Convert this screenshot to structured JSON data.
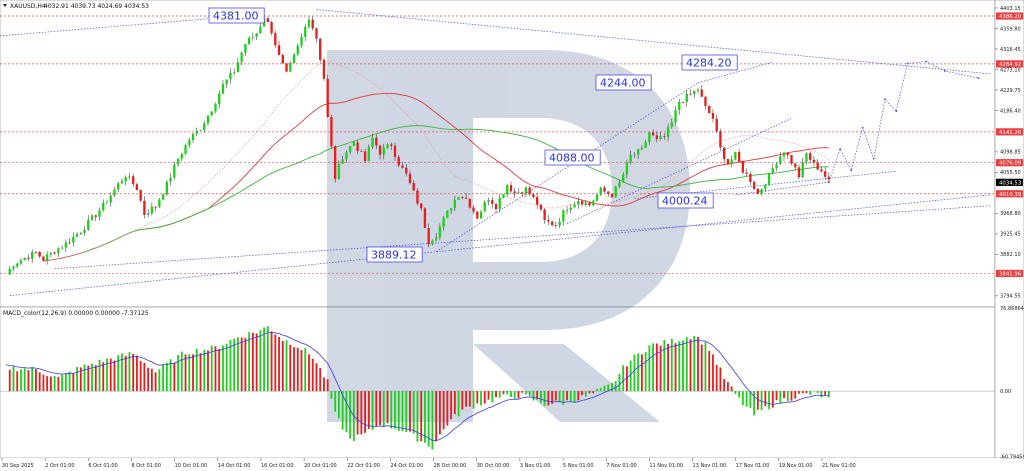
{
  "header": {
    "title": "XAUUSD,H4",
    "ohlc": "4032.91 4039.73 4024.69 4034.53"
  },
  "macd_label": "MACD_color(12,26,9) 0.00000 0.00000 -7.37125",
  "colors": {
    "bull": "#1ecf1e",
    "bear": "#e81c1c",
    "ma_slow": "#e23a3a",
    "ma_fast": "#3cb43c",
    "ma_mid": "#d9a0a0",
    "forecast": "#4b4be8",
    "level": "#e05050",
    "label_text": "#2a35d8",
    "macd_signal": "#3a3ae0",
    "current_price_bg": "#000000"
  },
  "price_axis": [
    "4403.15",
    "4359.80",
    "4316.45",
    "4273.10",
    "4229.75",
    "4186.40",
    "4098.85",
    "4055.50",
    "3968.80",
    "3925.45",
    "3882.10",
    "3794.55"
  ],
  "macd_axis": [
    "76.86864",
    "0.00",
    "-60.79459"
  ],
  "level_tags": [
    {
      "text": "4386.20",
      "color": "#e84040",
      "value": 4386.2
    },
    {
      "text": "4284.92",
      "color": "#e84040",
      "value": 4284.92
    },
    {
      "text": "4141.26",
      "color": "#e84040",
      "value": 4141.26
    },
    {
      "text": "4076.09",
      "color": "#e84040",
      "value": 4076.09
    },
    {
      "text": "4034.53",
      "color": "#000000",
      "value": 4034.53
    },
    {
      "text": "4010.39",
      "color": "#e84040",
      "value": 4010.39
    },
    {
      "text": "3841.96",
      "color": "#e84040",
      "value": 3841.96
    }
  ],
  "time_axis": [
    "30 Sep 2025",
    "2 Oct 01:00",
    "6 Oct 01:00",
    "8 Oct 01:00",
    "10 Oct 01:00",
    "14 Oct 01:00",
    "16 Oct 01:00",
    "20 Oct 01:00",
    "22 Oct 01:00",
    "24 Oct 01:00",
    "28 Oct 00:00",
    "30 Oct 00:00",
    "3 Nov 01:00",
    "5 Nov 01:00",
    "7 Nov 01:00",
    "11 Nov 01:00",
    "13 Nov 01:00",
    "17 Nov 01:00",
    "19 Nov 01:00",
    "21 Nov 01:00"
  ],
  "annotations": [
    {
      "text": "4381.00"
    },
    {
      "text": "4284.20"
    },
    {
      "text": "4244.00"
    },
    {
      "text": "4088.00"
    },
    {
      "text": "4000.24"
    },
    {
      "text": "3889.12"
    }
  ],
  "chart_data": {
    "type": "candlestick",
    "symbol": "XAUUSD",
    "timeframe": "H4",
    "ylim": [
      3771,
      4420
    ],
    "macd_ylim": [
      -62,
      78
    ],
    "x_labels": [
      "30 Sep 2025",
      "2 Oct 01:00",
      "6 Oct 01:00",
      "8 Oct 01:00",
      "10 Oct 01:00",
      "14 Oct 01:00",
      "16 Oct 01:00",
      "20 Oct 01:00",
      "22 Oct 01:00",
      "24 Oct 01:00",
      "28 Oct 00:00",
      "30 Oct 00:00",
      "3 Nov 01:00",
      "5 Nov 01:00",
      "7 Nov 01:00",
      "11 Nov 01:00",
      "13 Nov 01:00",
      "17 Nov 01:00",
      "19 Nov 01:00",
      "21 Nov 01:00"
    ],
    "price_anchors": [
      [
        0,
        3840
      ],
      [
        2,
        3862
      ],
      [
        5,
        3875
      ],
      [
        8,
        3886
      ],
      [
        10,
        3872
      ],
      [
        13,
        3890
      ],
      [
        16,
        3905
      ],
      [
        20,
        3932
      ],
      [
        23,
        3958
      ],
      [
        26,
        3985
      ],
      [
        30,
        4030
      ],
      [
        32,
        4050
      ],
      [
        35,
        4022
      ],
      [
        37,
        3968
      ],
      [
        40,
        3985
      ],
      [
        43,
        4030
      ],
      [
        46,
        4085
      ],
      [
        49,
        4125
      ],
      [
        52,
        4150
      ],
      [
        55,
        4190
      ],
      [
        58,
        4240
      ],
      [
        61,
        4270
      ],
      [
        64,
        4328
      ],
      [
        67,
        4350
      ],
      [
        69,
        4385
      ],
      [
        71,
        4355
      ],
      [
        73,
        4300
      ],
      [
        75,
        4262
      ],
      [
        77,
        4300
      ],
      [
        79,
        4340
      ],
      [
        81,
        4385
      ],
      [
        83,
        4340
      ],
      [
        85,
        4255
      ],
      [
        86,
        4170
      ],
      [
        88,
        4045
      ],
      [
        90,
        4090
      ],
      [
        93,
        4120
      ],
      [
        96,
        4080
      ],
      [
        98,
        4128
      ],
      [
        100,
        4098
      ],
      [
        103,
        4115
      ],
      [
        105,
        4075
      ],
      [
        107,
        4050
      ],
      [
        109,
        4012
      ],
      [
        111,
        3975
      ],
      [
        113,
        3910
      ],
      [
        115,
        3925
      ],
      [
        117,
        3955
      ],
      [
        119,
        3985
      ],
      [
        121,
        4010
      ],
      [
        123,
        4000
      ],
      [
        126,
        3962
      ],
      [
        129,
        4002
      ],
      [
        131,
        3985
      ],
      [
        134,
        4030
      ],
      [
        136,
        4012
      ],
      [
        139,
        4020
      ],
      [
        142,
        3990
      ],
      [
        144,
        3952
      ],
      [
        147,
        3945
      ],
      [
        150,
        3982
      ],
      [
        153,
        3998
      ],
      [
        156,
        3987
      ],
      [
        159,
        4018
      ],
      [
        162,
        4008
      ],
      [
        164,
        4032
      ],
      [
        167,
        4090
      ],
      [
        170,
        4102
      ],
      [
        172,
        4140
      ],
      [
        174,
        4122
      ],
      [
        176,
        4130
      ],
      [
        178,
        4160
      ],
      [
        180,
        4205
      ],
      [
        183,
        4220
      ],
      [
        185,
        4232
      ],
      [
        187,
        4192
      ],
      [
        189,
        4170
      ],
      [
        191,
        4105
      ],
      [
        193,
        4075
      ],
      [
        195,
        4092
      ],
      [
        197,
        4060
      ],
      [
        199,
        4040
      ],
      [
        201,
        4010
      ],
      [
        204,
        4048
      ],
      [
        206,
        4080
      ],
      [
        208,
        4102
      ],
      [
        210,
        4078
      ],
      [
        212,
        4048
      ],
      [
        214,
        4095
      ],
      [
        216,
        4072
      ],
      [
        218,
        4060
      ],
      [
        220,
        4035
      ]
    ],
    "price_lines": [
      {
        "value": 4386.2
      },
      {
        "value": 4284.92
      },
      {
        "value": 4141.26
      },
      {
        "value": 4076.09
      },
      {
        "value": 4010.39
      },
      {
        "value": 3841.96
      }
    ],
    "macd_anchors": [
      [
        0,
        22
      ],
      [
        8,
        20
      ],
      [
        14,
        12
      ],
      [
        20,
        22
      ],
      [
        28,
        30
      ],
      [
        34,
        35
      ],
      [
        40,
        18
      ],
      [
        48,
        36
      ],
      [
        56,
        40
      ],
      [
        62,
        50
      ],
      [
        68,
        56
      ],
      [
        70,
        60
      ],
      [
        74,
        48
      ],
      [
        78,
        42
      ],
      [
        82,
        32
      ],
      [
        86,
        8
      ],
      [
        88,
        -22
      ],
      [
        92,
        -45
      ],
      [
        96,
        -40
      ],
      [
        100,
        -30
      ],
      [
        106,
        -36
      ],
      [
        110,
        -44
      ],
      [
        114,
        -52
      ],
      [
        118,
        -30
      ],
      [
        122,
        -18
      ],
      [
        126,
        -12
      ],
      [
        132,
        -6
      ],
      [
        138,
        -4
      ],
      [
        144,
        -12
      ],
      [
        150,
        -10
      ],
      [
        156,
        -4
      ],
      [
        162,
        6
      ],
      [
        166,
        26
      ],
      [
        172,
        42
      ],
      [
        178,
        46
      ],
      [
        184,
        52
      ],
      [
        188,
        40
      ],
      [
        192,
        12
      ],
      [
        196,
        -8
      ],
      [
        200,
        -22
      ],
      [
        204,
        -14
      ],
      [
        208,
        -8
      ],
      [
        212,
        -4
      ],
      [
        216,
        -2
      ],
      [
        220,
        -7
      ]
    ]
  }
}
